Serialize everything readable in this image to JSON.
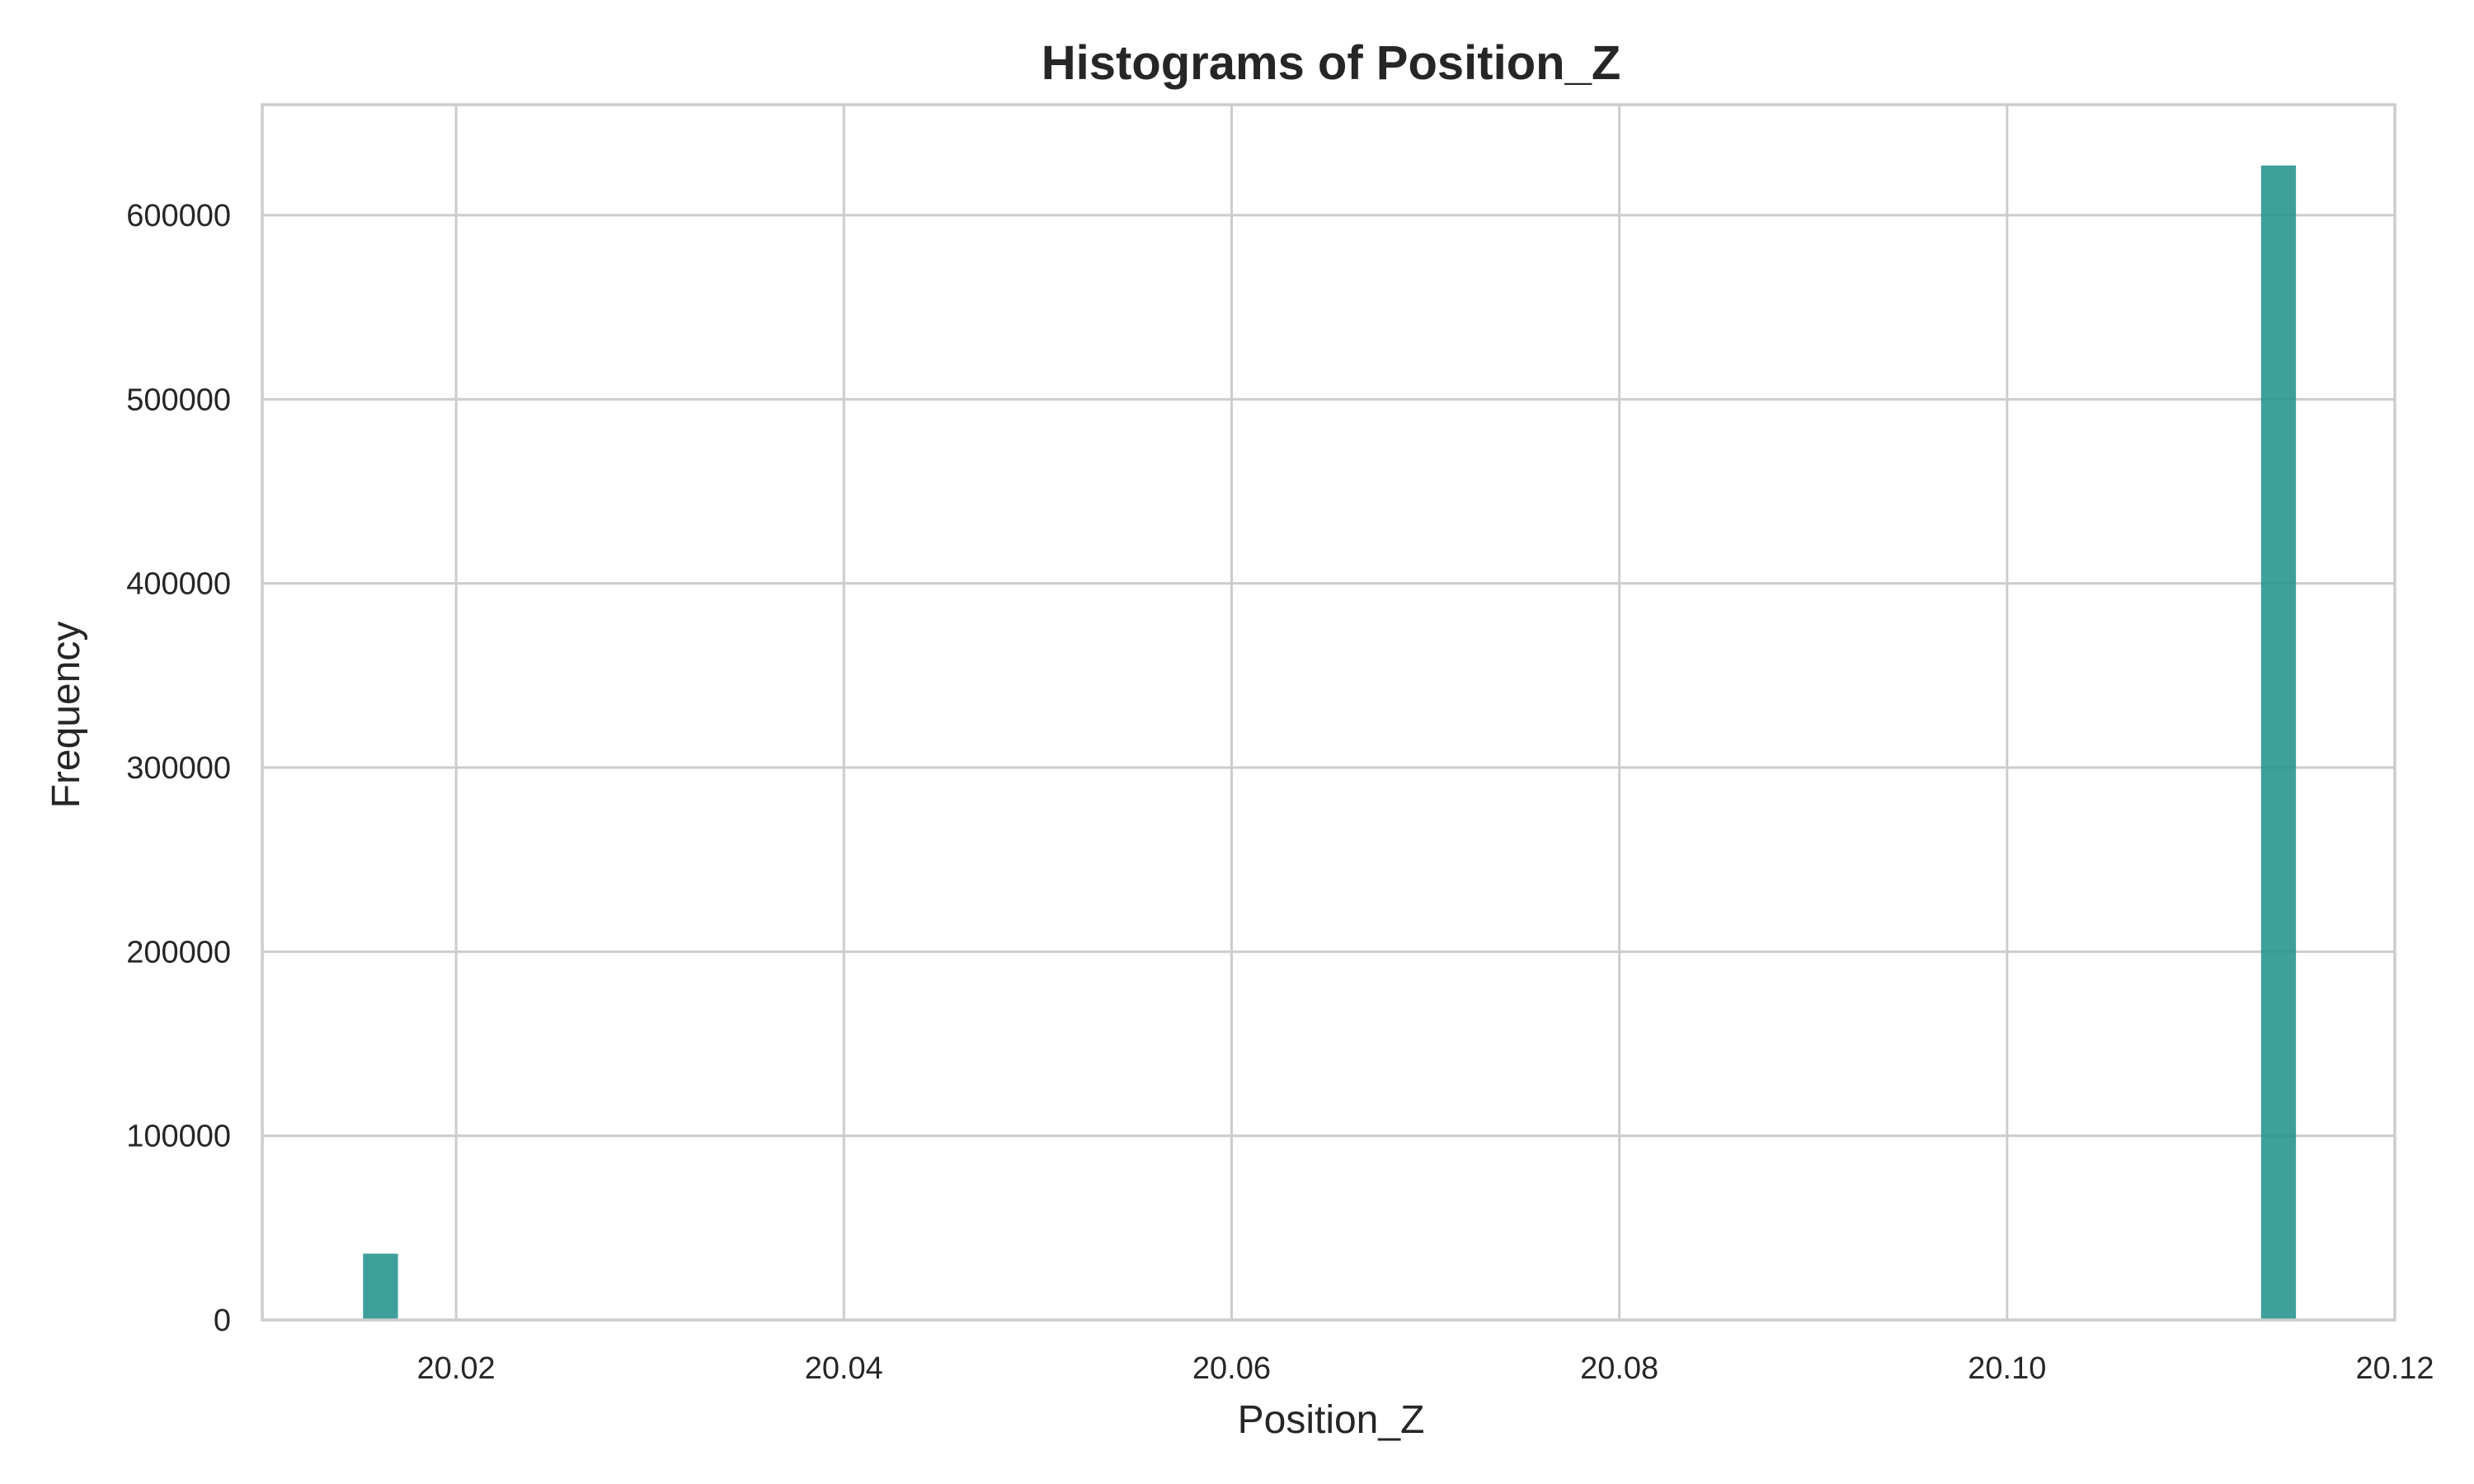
{
  "chart_data": {
    "type": "bar",
    "title": "Histograms of Position_Z",
    "xlabel": "Position_Z",
    "ylabel": "Frequency",
    "xlim": [
      20.01,
      20.12
    ],
    "ylim": [
      0,
      660000
    ],
    "x_ticks": [
      20.02,
      20.04,
      20.06,
      20.08,
      20.1,
      20.12
    ],
    "x_tick_labels": [
      "20.02",
      "20.04",
      "20.06",
      "20.08",
      "20.10",
      "20.12"
    ],
    "y_ticks": [
      0,
      100000,
      200000,
      300000,
      400000,
      500000,
      600000
    ],
    "y_tick_labels": [
      "0",
      "100000",
      "200000",
      "300000",
      "400000",
      "500000",
      "600000"
    ],
    "grid": true,
    "bars": [
      {
        "x0": 20.0152,
        "x1": 20.017,
        "value": 36000
      },
      {
        "x0": 20.1131,
        "x1": 20.1149,
        "value": 627000
      }
    ],
    "colors": {
      "bar": "#2a9590",
      "grid": "#cccccc",
      "spine": "#cccccc",
      "text": "#262626",
      "background": "#ffffff"
    }
  }
}
